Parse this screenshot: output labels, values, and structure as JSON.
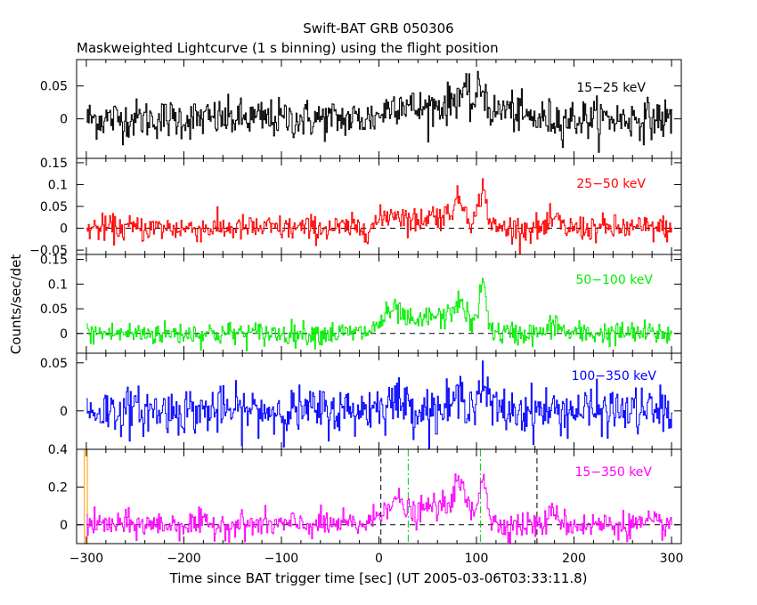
{
  "chart_data": {
    "type": "line",
    "title": "Swift-BAT GRB 050306",
    "subtitle": "Maskweighted Lightcurve (1 s binning) using the flight position",
    "xlabel": "Time since BAT trigger time [sec] (UT 2005-03-06T03:33:11.8)",
    "ylabel": "Counts/sec/det",
    "xlim": [
      -310,
      310
    ],
    "x_ticks": [
      -300,
      -200,
      -100,
      0,
      100,
      200,
      300
    ],
    "x_tick_labels": [
      "−300",
      "−200",
      "−100",
      "0",
      "100",
      "200",
      "300"
    ],
    "x_range_data": [
      -300,
      300
    ],
    "binning_sec": 1,
    "panels": [
      {
        "name": "15-25 keV",
        "label": "15−25 keV",
        "color": "#000000",
        "ylim": [
          -0.06,
          0.09
        ],
        "y_ticks": [
          0,
          0.05
        ],
        "y_tick_labels": [
          "0",
          "0.05"
        ],
        "zero_line": false,
        "noise_sigma": 0.015,
        "pulses": [
          {
            "t": 20,
            "amp": 0.025,
            "w": 12
          },
          {
            "t": 60,
            "amp": 0.02,
            "w": 15
          },
          {
            "t": 85,
            "amp": 0.035,
            "w": 8
          },
          {
            "t": 105,
            "amp": 0.045,
            "w": 5
          },
          {
            "t": 130,
            "amp": 0.015,
            "w": 10
          }
        ]
      },
      {
        "name": "25-50 keV",
        "label": "25−50 keV",
        "color": "#ff0000",
        "ylim": [
          -0.06,
          0.16
        ],
        "y_ticks": [
          -0.05,
          0,
          0.05,
          0.1,
          0.15
        ],
        "y_tick_labels": [
          "−0.05",
          "0",
          "0.05",
          "0.1",
          "0.15"
        ],
        "zero_line": true,
        "noise_sigma": 0.015,
        "pulses": [
          {
            "t": 15,
            "amp": 0.035,
            "w": 12
          },
          {
            "t": 55,
            "amp": 0.03,
            "w": 12
          },
          {
            "t": 82,
            "amp": 0.06,
            "w": 8
          },
          {
            "t": 106,
            "amp": 0.09,
            "w": 4
          },
          {
            "t": 180,
            "amp": 0.02,
            "w": 4
          }
        ]
      },
      {
        "name": "50-100 keV",
        "label": "50−100 keV",
        "color": "#00ee00",
        "ylim": [
          -0.04,
          0.16
        ],
        "y_ticks": [
          0,
          0.05,
          0.1,
          0.15
        ],
        "y_tick_labels": [
          "0",
          "0.05",
          "0.1",
          "0.15"
        ],
        "zero_line": true,
        "noise_sigma": 0.012,
        "pulses": [
          {
            "t": 15,
            "amp": 0.045,
            "w": 12
          },
          {
            "t": 55,
            "amp": 0.035,
            "w": 12
          },
          {
            "t": 82,
            "amp": 0.06,
            "w": 8
          },
          {
            "t": 106,
            "amp": 0.1,
            "w": 4
          },
          {
            "t": 180,
            "amp": 0.02,
            "w": 5
          }
        ]
      },
      {
        "name": "100-350 keV",
        "label": "100−350 keV",
        "color": "#0000ff",
        "ylim": [
          -0.04,
          0.06
        ],
        "y_ticks": [
          0,
          0.05
        ],
        "y_tick_labels": [
          "0",
          "0.05"
        ],
        "zero_line": false,
        "noise_sigma": 0.012,
        "pulses": [
          {
            "t": 15,
            "amp": 0.01,
            "w": 15
          },
          {
            "t": 85,
            "amp": 0.015,
            "w": 8
          },
          {
            "t": 106,
            "amp": 0.025,
            "w": 5
          }
        ]
      },
      {
        "name": "15-350 keV",
        "label": "15−350 keV",
        "color": "#ff00ff",
        "ylim": [
          -0.1,
          0.4
        ],
        "y_ticks": [
          0,
          0.2,
          0.4
        ],
        "y_tick_labels": [
          "0",
          "0.2",
          "0.4"
        ],
        "zero_line": true,
        "noise_sigma": 0.035,
        "pulses": [
          {
            "t": 15,
            "amp": 0.13,
            "w": 12
          },
          {
            "t": 55,
            "amp": 0.1,
            "w": 12
          },
          {
            "t": 82,
            "amp": 0.2,
            "w": 8
          },
          {
            "t": 106,
            "amp": 0.27,
            "w": 4
          },
          {
            "t": 180,
            "amp": 0.07,
            "w": 5
          }
        ],
        "markers": [
          {
            "t": 2,
            "color": "#000000",
            "dash": "6,4",
            "desc": "T100 start"
          },
          {
            "t": 30,
            "color": "#00cc00",
            "dash": "8,3,2,3",
            "desc": "T90 start"
          },
          {
            "t": 104,
            "color": "#00cc00",
            "dash": "8,3,2,3",
            "desc": "T90 end"
          },
          {
            "t": 162,
            "color": "#000000",
            "dash": "6,4",
            "desc": "T100 end"
          },
          {
            "t": -302,
            "color": "#ff9900",
            "dash": "",
            "desc": "data start"
          },
          {
            "t": -299,
            "color": "#ff9900",
            "dash": "",
            "desc": "data start"
          }
        ]
      }
    ]
  }
}
